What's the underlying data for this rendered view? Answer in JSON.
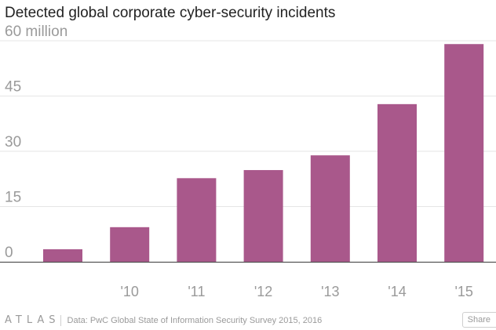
{
  "chart_data": {
    "type": "bar",
    "title": "Detected global corporate cyber-security incidents",
    "xlabel": "",
    "ylabel": "",
    "categories": [
      "",
      "'10",
      "'11",
      "'12",
      "'13",
      "'14",
      "'15"
    ],
    "values": [
      3.4,
      9.4,
      22.7,
      24.9,
      28.9,
      42.8,
      59.1
    ],
    "ylim": [
      0,
      60
    ],
    "yticks": [
      0,
      15,
      30,
      45,
      60
    ],
    "ytick_labels": [
      "0",
      "15",
      "30",
      "45",
      "60 million"
    ],
    "grid": true,
    "legend": "none",
    "colors": {
      "bar": "#a9588b",
      "grid": "#e6e6e6",
      "axis": "#555555",
      "tick_text": "#9a9a9a"
    }
  },
  "footer": {
    "brand": "ATLAS",
    "source": "Data: PwC Global State of Information Security Survey 2015, 2016",
    "share_label": "Share"
  }
}
